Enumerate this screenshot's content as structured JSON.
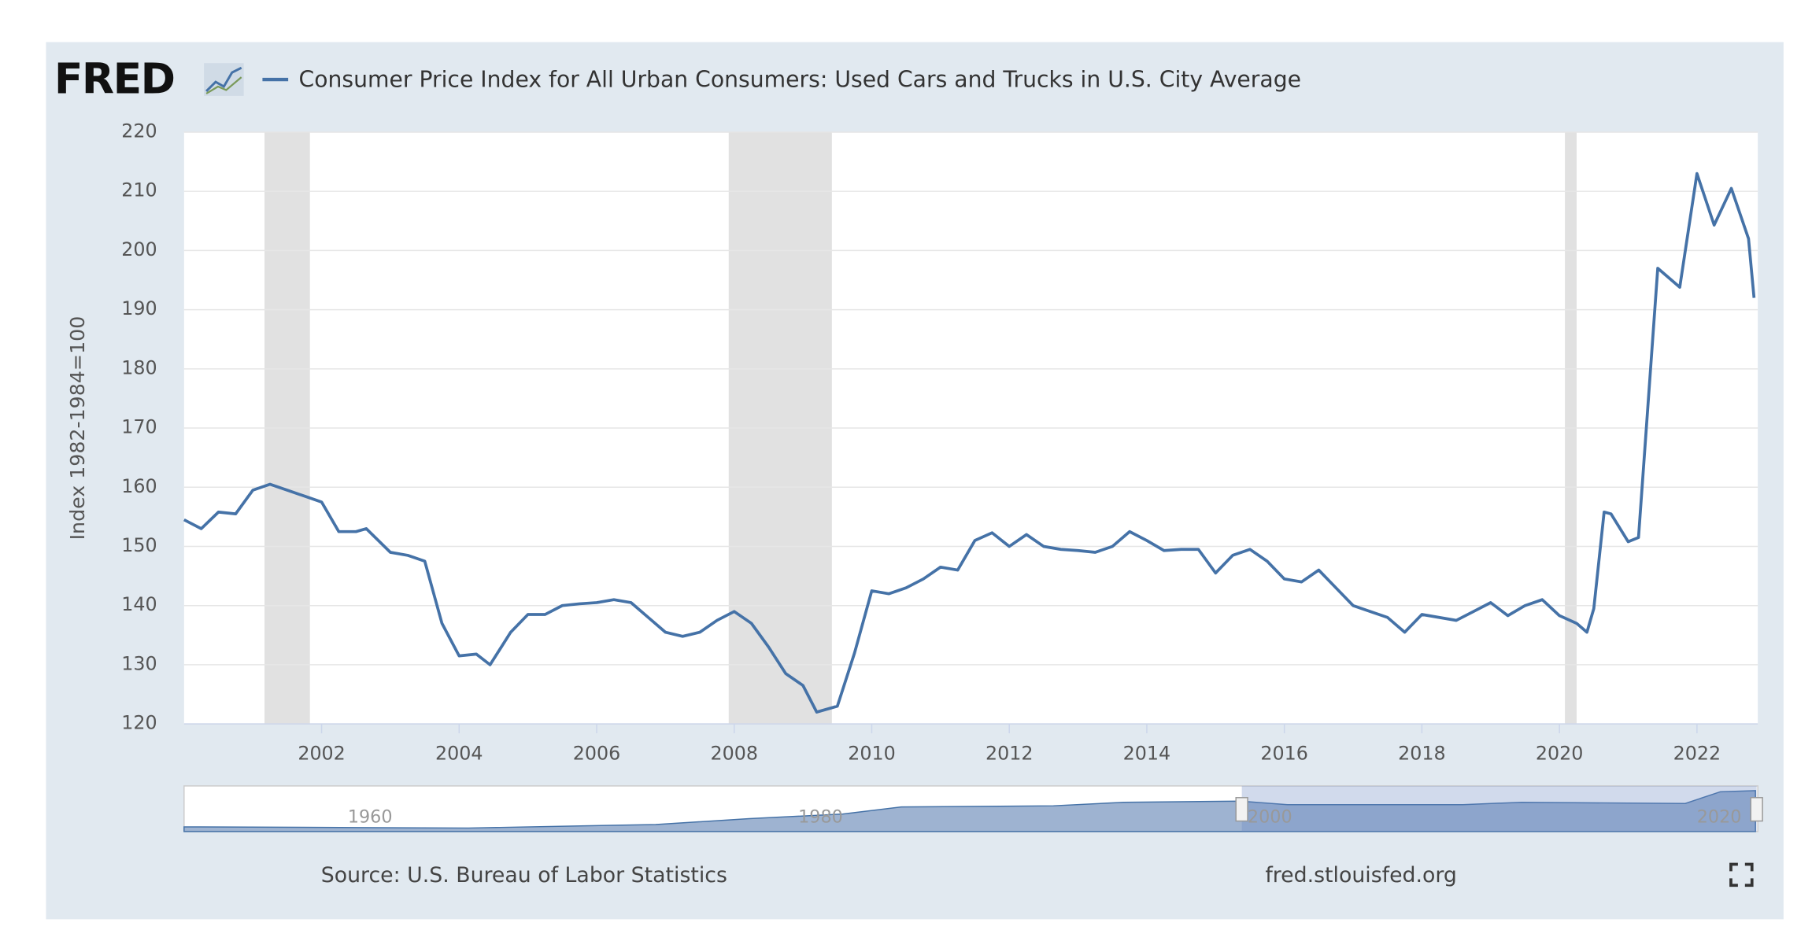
{
  "logo": "FRED",
  "chart_data": {
    "type": "line",
    "y_label": "Index 1982-1984=100",
    "x": [
      2000.0,
      2000.25,
      2000.5,
      2000.75,
      2001.0,
      2001.25,
      2001.5,
      2001.75,
      2002.0,
      2002.25,
      2002.5,
      2002.65,
      2003.0,
      2003.25,
      2003.5,
      2003.75,
      2004.0,
      2004.25,
      2004.45,
      2004.75,
      2005.0,
      2005.25,
      2005.5,
      2005.75,
      2006.0,
      2006.25,
      2006.5,
      2006.75,
      2007.0,
      2007.25,
      2007.5,
      2007.75,
      2008.0,
      2008.25,
      2008.5,
      2008.75,
      2009.0,
      2009.2,
      2009.5,
      2009.75,
      2010.0,
      2010.25,
      2010.5,
      2010.75,
      2011.0,
      2011.25,
      2011.5,
      2011.75,
      2012.0,
      2012.25,
      2012.5,
      2012.75,
      2013.0,
      2013.25,
      2013.5,
      2013.75,
      2014.0,
      2014.25,
      2014.5,
      2014.75,
      2015.0,
      2015.25,
      2015.5,
      2015.75,
      2016.0,
      2016.25,
      2016.5,
      2016.75,
      2017.0,
      2017.25,
      2017.5,
      2017.75,
      2018.0,
      2018.25,
      2018.5,
      2018.75,
      2019.0,
      2019.25,
      2019.5,
      2019.75,
      2020.0,
      2020.25,
      2020.4,
      2020.5,
      2020.65,
      2020.75,
      2021.0,
      2021.15,
      2021.43,
      2021.75,
      2022.0,
      2022.25,
      2022.5,
      2022.75,
      2022.83
    ],
    "series": [
      {
        "name": "Consumer Price Index for All Urban Consumers: Used Cars and Trucks in U.S. City Average",
        "color": "#4572a7",
        "values": [
          154.5,
          153,
          155.8,
          155.5,
          159.5,
          160.5,
          159.5,
          158.5,
          157.5,
          152.5,
          152.5,
          153,
          149,
          148.5,
          147.5,
          137,
          131.5,
          131.8,
          130,
          135.5,
          138.5,
          138.5,
          140,
          140.3,
          140.5,
          141,
          140.5,
          138,
          135.5,
          134.8,
          135.5,
          137.5,
          139,
          137,
          133,
          128.5,
          126.5,
          122,
          123,
          132,
          142.5,
          142,
          143,
          144.5,
          146.5,
          146,
          151,
          152.3,
          150,
          152,
          150,
          149.5,
          149.3,
          149,
          150,
          152.5,
          151,
          149.3,
          149.5,
          149.5,
          145.5,
          148.5,
          149.5,
          147.5,
          144.5,
          144,
          146,
          143,
          140,
          139,
          138,
          135.5,
          138.5,
          138,
          137.5,
          139,
          140.5,
          138.3,
          140,
          141,
          138.3,
          137,
          135.5,
          139.5,
          155.8,
          155.5,
          150.8,
          151.5,
          197,
          193.8,
          213,
          204.3,
          210.5,
          202,
          192
        ]
      }
    ],
    "xlim": [
      2000.0,
      2022.885
    ],
    "xticks": [
      2002,
      2004,
      2006,
      2008,
      2010,
      2012,
      2014,
      2016,
      2018,
      2020,
      2022
    ],
    "ylim": [
      120,
      220
    ],
    "yticks": [
      120,
      130,
      140,
      150,
      160,
      170,
      180,
      190,
      200,
      210,
      220
    ],
    "grid": true,
    "shaded_periods": [
      [
        2001.17,
        2001.83
      ],
      [
        2007.92,
        2009.42
      ],
      [
        2020.08,
        2020.25
      ]
    ],
    "shade_color": "#e1e1e1",
    "navigator_labels": [
      "1960",
      "1980",
      "2000",
      "2020"
    ],
    "source": "Source: U.S. Bureau of Labor Statistics",
    "url": "fred.stlouisfed.org"
  }
}
